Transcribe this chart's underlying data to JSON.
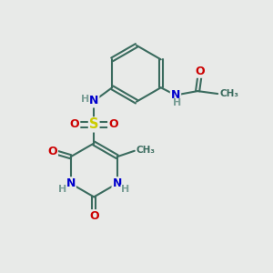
{
  "bg_color": "#e8eae8",
  "bond_color": "#3a6b5e",
  "bond_lw": 1.5,
  "atom_colors": {
    "C": "#3a6b5e",
    "N": "#0000cc",
    "O": "#cc0000",
    "S": "#cccc00",
    "H": "#7a9e96"
  },
  "font_size_atom": 9.0,
  "font_size_H": 8.0,
  "font_size_me": 7.5
}
